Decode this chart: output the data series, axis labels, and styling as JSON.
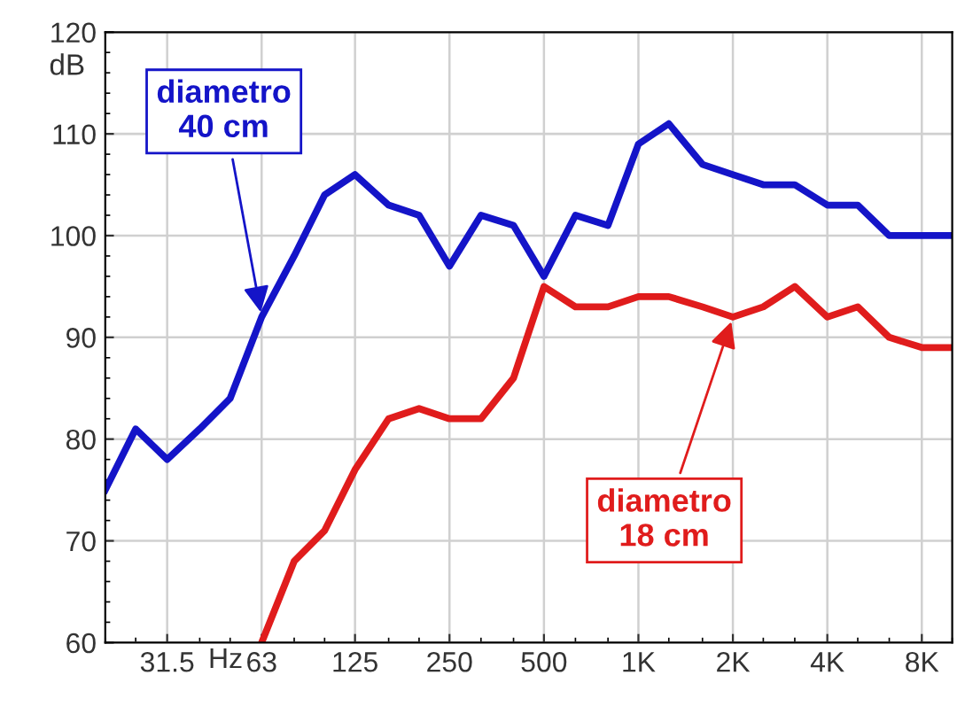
{
  "chart_data": {
    "type": "line",
    "ylabel": "dB",
    "xlabel": "Hz",
    "log": "x",
    "x": [
      20,
      25,
      31.5,
      40,
      50,
      63,
      80,
      100,
      125,
      160,
      200,
      250,
      315,
      400,
      500,
      630,
      800,
      1000,
      1250,
      1600,
      2000,
      2500,
      3150,
      4000,
      5000,
      6300,
      8000,
      10000
    ],
    "series": [
      {
        "color": "#1414c8",
        "values": [
          75,
          81,
          78,
          81,
          84,
          92,
          98,
          104,
          106,
          103,
          102,
          97,
          102,
          101,
          96,
          102,
          101,
          109,
          111,
          107,
          106,
          105,
          105,
          103,
          103,
          100,
          100,
          100
        ]
      },
      {
        "color": "#e01c1c",
        "values": [
          null,
          null,
          null,
          null,
          null,
          60,
          68,
          71,
          77,
          82,
          83,
          82,
          82,
          86,
          95,
          93,
          93,
          94,
          94,
          93,
          92,
          93,
          95,
          92,
          93,
          90,
          89,
          89
        ]
      }
    ],
    "xlim": [
      20,
      10000
    ],
    "ylim": [
      60,
      120
    ],
    "xticks": [
      31.5,
      63,
      125,
      250,
      500,
      {
        "value": 1000,
        "label": "1K"
      },
      {
        "value": 2000,
        "label": "2K"
      },
      {
        "value": 4000,
        "label": "4K"
      },
      {
        "value": 8000,
        "label": "8K"
      }
    ],
    "yticks": [
      60,
      70,
      80,
      90,
      100,
      110,
      120
    ],
    "annotations": [
      {
        "text": "diametro\n40 cm",
        "x": 63,
        "y": 92
      },
      {
        "text": "diametro\n18 cm",
        "x": 2000,
        "y": 92
      }
    ],
    "grid": true,
    "marker": "none",
    "line_style": "solid",
    "legend": false
  }
}
